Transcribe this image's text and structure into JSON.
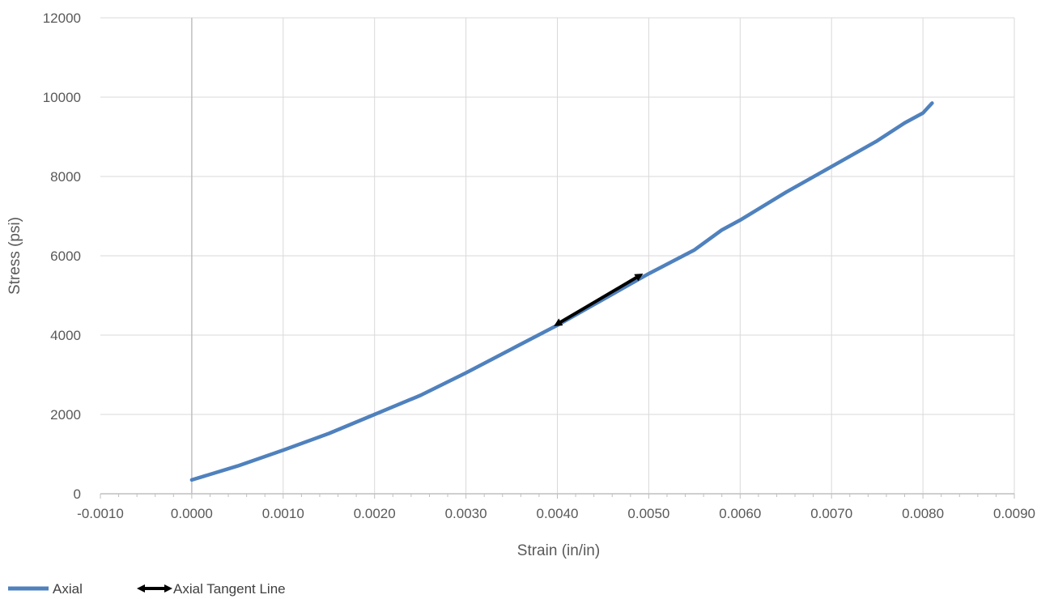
{
  "chart_data": {
    "type": "line",
    "title": "",
    "xlabel": "Strain (in/in)",
    "ylabel": "Stress (psi)",
    "xlim": [
      -0.001,
      0.009
    ],
    "ylim": [
      0,
      12000
    ],
    "x_ticks": [
      "-0.0010",
      "0.0000",
      "0.0010",
      "0.0020",
      "0.0030",
      "0.0040",
      "0.0050",
      "0.0060",
      "0.0070",
      "0.0080",
      "0.0090"
    ],
    "y_ticks": [
      "0",
      "2000",
      "4000",
      "6000",
      "8000",
      "10000",
      "12000"
    ],
    "grid": true,
    "legend_position": "bottom-left",
    "series": [
      {
        "name": "Axial",
        "color": "#4f81bd",
        "x": [
          0.0,
          0.0005,
          0.001,
          0.0015,
          0.002,
          0.0025,
          0.003,
          0.0035,
          0.004,
          0.0045,
          0.005,
          0.0055,
          0.0058,
          0.006,
          0.0065,
          0.007,
          0.0075,
          0.0078,
          0.008,
          0.0081
        ],
        "y": [
          350,
          700,
          1100,
          1520,
          2000,
          2480,
          3050,
          3650,
          4250,
          4900,
          5550,
          6150,
          6650,
          6900,
          7600,
          8250,
          8900,
          9350,
          9600,
          9850
        ]
      },
      {
        "name": "Axial Tangent Line",
        "color": "#000000",
        "x": [
          0.004,
          0.0049
        ],
        "y": [
          4280,
          5500
        ]
      }
    ]
  }
}
